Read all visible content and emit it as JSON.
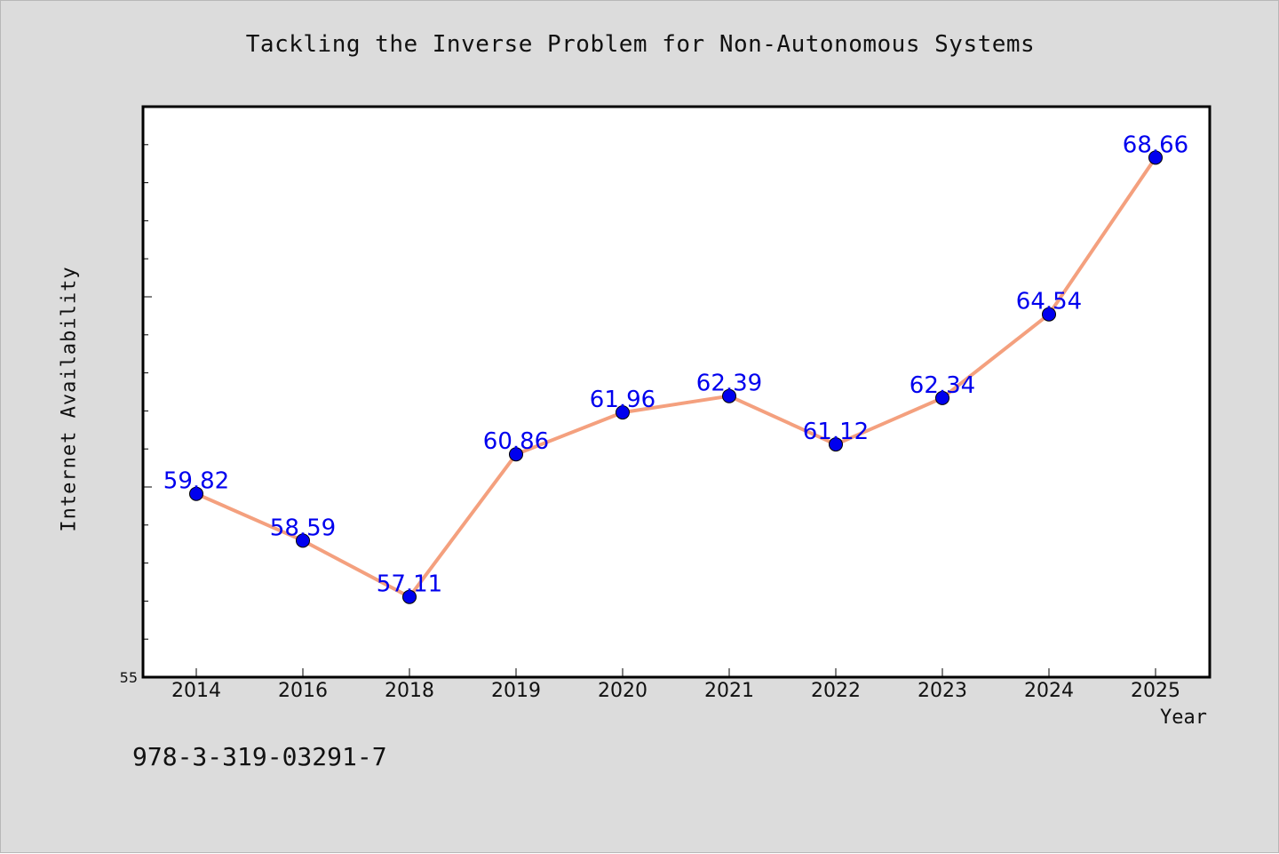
{
  "chart_data": {
    "type": "line",
    "title": "Tackling the Inverse Problem for Non-Autonomous Systems",
    "xlabel": "Year",
    "ylabel": "Internet Availability",
    "categories": [
      "2014",
      "2016",
      "2018",
      "2019",
      "2020",
      "2021",
      "2022",
      "2023",
      "2024",
      "2025"
    ],
    "series": [
      {
        "values": [
          59.82,
          58.59,
          57.11,
          60.86,
          61.96,
          62.39,
          61.12,
          62.34,
          64.54,
          68.66
        ],
        "labels": [
          "59.82",
          "58.59",
          "57.11",
          "60.86",
          "61.96",
          "62.39",
          "61.12",
          "62.34",
          "64.54",
          "68.66"
        ]
      }
    ],
    "ylim": [
      55,
      70
    ],
    "yticks_major_every": 5,
    "yticks_minor_every": 1,
    "ytick_labels": [
      "55"
    ],
    "grid": false,
    "colors": {
      "line": "#f4a07e",
      "marker": "#0000ee",
      "label": "#0000ee",
      "background": "#dcdcdc",
      "plot_area": "#ffffff"
    }
  },
  "footer": {
    "code": "978-3-319-03291-7"
  }
}
